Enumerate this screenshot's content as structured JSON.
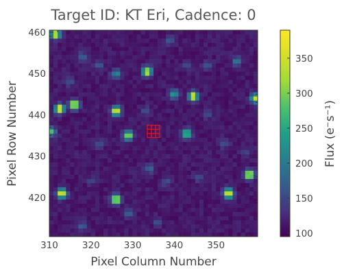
{
  "chart_data": {
    "type": "heatmap",
    "title": "Target ID: KT Eri, Cadence: 0",
    "xlabel": "Pixel Column Number",
    "ylabel": "Pixel Row Number",
    "colorbar_label": "Flux (e⁻s⁻¹)",
    "xlim": [
      310,
      360
    ],
    "ylim": [
      410.5,
      460.5
    ],
    "xticks": [
      310,
      320,
      330,
      340,
      350
    ],
    "yticks": [
      420,
      430,
      440,
      450,
      460
    ],
    "colorbar_range": [
      95,
      390
    ],
    "colorbar_ticks": [
      100,
      150,
      200,
      250,
      300,
      350
    ],
    "colormap": "viridis",
    "background_level": 110,
    "sources": [
      {
        "x": 311.5,
        "y": 459.5,
        "peak": 360
      },
      {
        "x": 312.5,
        "y": 441.5,
        "peak": 390
      },
      {
        "x": 316,
        "y": 442.5,
        "peak": 390
      },
      {
        "x": 310.5,
        "y": 436,
        "peak": 270
      },
      {
        "x": 313,
        "y": 421,
        "peak": 390
      },
      {
        "x": 326,
        "y": 441,
        "peak": 380
      },
      {
        "x": 329,
        "y": 435,
        "peak": 330
      },
      {
        "x": 326,
        "y": 419.5,
        "peak": 380
      },
      {
        "x": 333.5,
        "y": 450.5,
        "peak": 360
      },
      {
        "x": 326,
        "y": 450,
        "peak": 220
      },
      {
        "x": 344.5,
        "y": 444.5,
        "peak": 380
      },
      {
        "x": 340,
        "y": 445,
        "peak": 240
      },
      {
        "x": 343,
        "y": 435.5,
        "peak": 300
      },
      {
        "x": 359.5,
        "y": 444,
        "peak": 330
      },
      {
        "x": 358,
        "y": 425.5,
        "peak": 390
      },
      {
        "x": 353,
        "y": 421,
        "peak": 390
      },
      {
        "x": 318,
        "y": 454,
        "peak": 180
      },
      {
        "x": 315,
        "y": 448,
        "peak": 160
      },
      {
        "x": 322,
        "y": 452,
        "peak": 170
      },
      {
        "x": 348,
        "y": 452,
        "peak": 170
      },
      {
        "x": 355,
        "y": 453,
        "peak": 200
      },
      {
        "x": 339,
        "y": 458,
        "peak": 170
      },
      {
        "x": 352,
        "y": 433,
        "peak": 160
      },
      {
        "x": 334,
        "y": 427,
        "peak": 180
      },
      {
        "x": 338,
        "y": 424,
        "peak": 160
      },
      {
        "x": 346,
        "y": 425,
        "peak": 160
      },
      {
        "x": 329,
        "y": 416,
        "peak": 170
      },
      {
        "x": 318,
        "y": 413,
        "peak": 170
      },
      {
        "x": 336,
        "y": 414,
        "peak": 160
      },
      {
        "x": 322,
        "y": 433,
        "peak": 150
      },
      {
        "x": 348,
        "y": 440,
        "peak": 150
      },
      {
        "x": 357,
        "y": 431,
        "peak": 150
      },
      {
        "x": 320,
        "y": 424,
        "peak": 140
      },
      {
        "x": 343,
        "y": 452,
        "peak": 150
      },
      {
        "x": 333,
        "y": 441,
        "peak": 150
      }
    ],
    "aperture_mask": {
      "color": "#e8121a",
      "pixels": [
        [
          334,
          435
        ],
        [
          335,
          435
        ],
        [
          336,
          435
        ],
        [
          334,
          436
        ],
        [
          335,
          436
        ],
        [
          336,
          436
        ],
        [
          334,
          437
        ],
        [
          335,
          437
        ],
        [
          336,
          437
        ]
      ]
    }
  }
}
